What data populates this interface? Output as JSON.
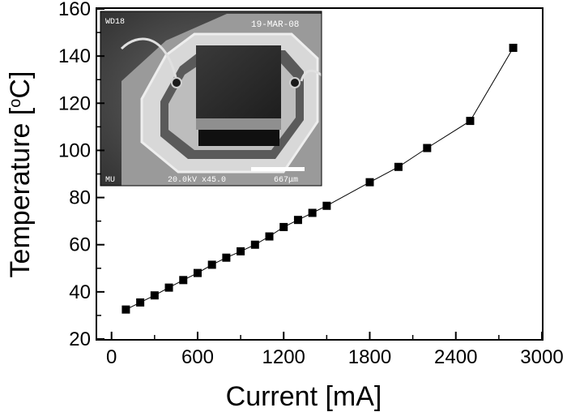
{
  "chart_data": {
    "type": "scatter",
    "xlabel": "Current [mA]",
    "ylabel_main": "Temperature [",
    "ylabel_sup": "o",
    "ylabel_unit": "C]",
    "xlim": [
      -100,
      3000
    ],
    "ylim": [
      20,
      160
    ],
    "xticks": [
      0,
      600,
      1200,
      1800,
      2400,
      3000
    ],
    "yticks": [
      20,
      40,
      60,
      80,
      100,
      120,
      140,
      160
    ],
    "grid": false,
    "marker": "square",
    "line": "connected",
    "x": [
      100,
      200,
      300,
      400,
      500,
      600,
      700,
      800,
      900,
      1000,
      1100,
      1200,
      1300,
      1400,
      1500,
      1800,
      2000,
      2200,
      2500,
      2800
    ],
    "y": [
      32.5,
      35.5,
      38.5,
      41.8,
      45,
      48,
      51.5,
      54.5,
      57.2,
      60,
      63.5,
      67.5,
      70.5,
      73.5,
      76.5,
      86.5,
      93,
      101,
      112.5,
      143.5
    ]
  },
  "inset": {
    "type": "SEM micrograph",
    "top_left_label": "WD18",
    "top_right_label": "19-MAR-08",
    "bottom_left_label": "MU",
    "bottom_mid_label": "20.0kV x45.0",
    "scale_label": "667μm"
  }
}
